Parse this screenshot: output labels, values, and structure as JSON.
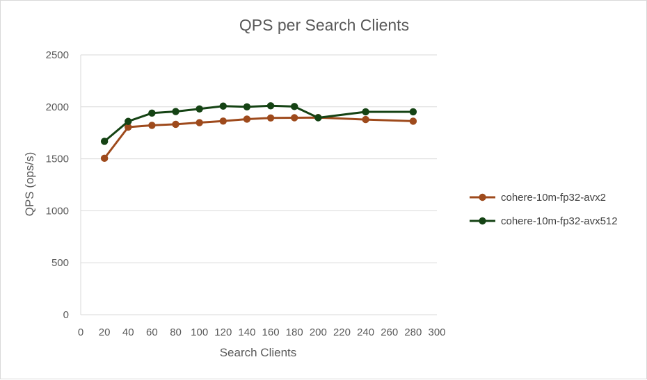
{
  "chart_data": {
    "type": "line",
    "title": "QPS per Search Clients",
    "xlabel": "Search Clients",
    "ylabel": "QPS (ops/s)",
    "xlim": [
      0,
      300
    ],
    "ylim": [
      0,
      2500
    ],
    "x_ticks": [
      0,
      20,
      40,
      60,
      80,
      100,
      120,
      140,
      160,
      180,
      200,
      220,
      240,
      260,
      280,
      300
    ],
    "y_ticks": [
      0,
      500,
      1000,
      1500,
      2000,
      2500
    ],
    "grid": "horizontal",
    "legend_position": "right",
    "series": [
      {
        "name": "cohere-10m-fp32-avx2",
        "color": "#9e4a1c",
        "x": [
          20,
          40,
          60,
          80,
          100,
          120,
          140,
          160,
          180,
          200,
          240,
          280
        ],
        "y": [
          1505,
          1805,
          1822,
          1832,
          1848,
          1863,
          1882,
          1893,
          1895,
          1897,
          1878,
          1862
        ]
      },
      {
        "name": "cohere-10m-fp32-avx512",
        "color": "#154314",
        "x": [
          20,
          40,
          60,
          80,
          100,
          120,
          140,
          160,
          180,
          200,
          240,
          280
        ],
        "y": [
          1668,
          1860,
          1940,
          1955,
          1980,
          2007,
          2000,
          2010,
          2003,
          1895,
          1952,
          1952
        ]
      }
    ]
  }
}
